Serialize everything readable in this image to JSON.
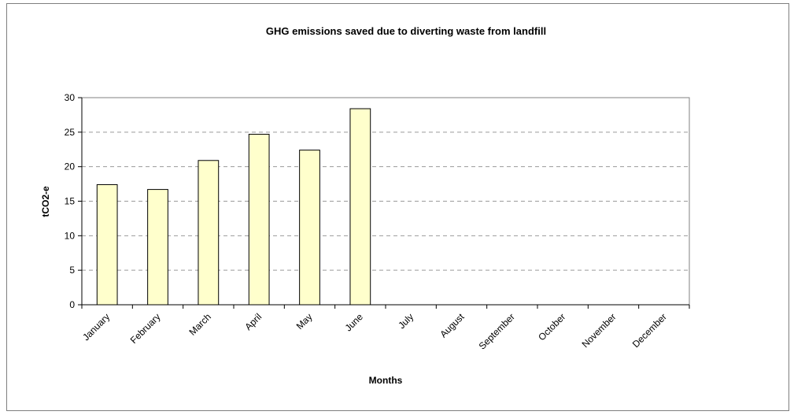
{
  "chart_data": {
    "type": "bar",
    "title": "GHG emissions saved due to diverting waste from landfill",
    "xlabel": "Months",
    "ylabel": "tCO2-e",
    "categories": [
      "January",
      "February",
      "March",
      "April",
      "May",
      "June",
      "July",
      "August",
      "September",
      "October",
      "November",
      "December"
    ],
    "values": [
      17.4,
      16.7,
      20.9,
      24.7,
      22.4,
      28.4,
      null,
      null,
      null,
      null,
      null,
      null
    ],
    "ylim": [
      0,
      30
    ],
    "yticks": [
      0,
      5,
      10,
      15,
      20,
      25,
      30
    ],
    "grid": "dashed horizontal",
    "legend": "none",
    "colors": {
      "bar_fill": "#FFFFCC",
      "bar_stroke": "#000000",
      "grid": "#9a9a9a",
      "plot_border": "#808080"
    }
  }
}
